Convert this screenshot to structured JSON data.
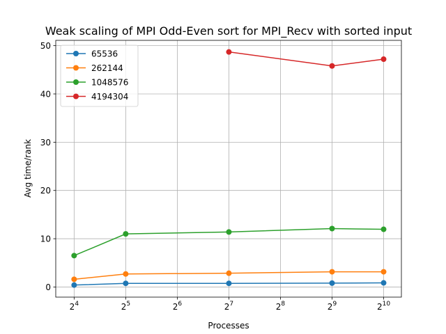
{
  "chart_data": {
    "type": "line",
    "title": "Weak scaling of MPI Odd-Even sort for MPI_Recv with sorted input",
    "xlabel": "Processes",
    "ylabel": "Avg time/rank",
    "xscale": "log2",
    "xlim": [
      12.5,
      1300
    ],
    "ylim": [
      -2.1,
      51.1
    ],
    "grid": true,
    "legend_position": "top-left",
    "x_ticks": [
      {
        "value": 16,
        "base": "2",
        "exp": "4"
      },
      {
        "value": 32,
        "base": "2",
        "exp": "5"
      },
      {
        "value": 64,
        "base": "2",
        "exp": "6"
      },
      {
        "value": 128,
        "base": "2",
        "exp": "7"
      },
      {
        "value": 256,
        "base": "2",
        "exp": "8"
      },
      {
        "value": 512,
        "base": "2",
        "exp": "9"
      },
      {
        "value": 1024,
        "base": "2",
        "exp": "10"
      }
    ],
    "y_ticks": [
      0,
      10,
      20,
      30,
      40,
      50
    ],
    "series": [
      {
        "name": "65536",
        "color": "#1f77b4",
        "x": [
          16,
          32,
          128,
          512,
          1024
        ],
        "y": [
          0.4,
          0.75,
          0.75,
          0.8,
          0.85
        ]
      },
      {
        "name": "262144",
        "color": "#ff7f0e",
        "x": [
          16,
          32,
          128,
          512,
          1024
        ],
        "y": [
          1.6,
          2.7,
          2.85,
          3.15,
          3.15
        ]
      },
      {
        "name": "1048576",
        "color": "#2ca02c",
        "x": [
          16,
          32,
          128,
          512,
          1024
        ],
        "y": [
          6.5,
          11.0,
          11.4,
          12.1,
          11.95
        ]
      },
      {
        "name": "4194304",
        "color": "#d62728",
        "x": [
          128,
          512,
          1024
        ],
        "y": [
          48.7,
          45.8,
          47.2
        ]
      }
    ]
  }
}
